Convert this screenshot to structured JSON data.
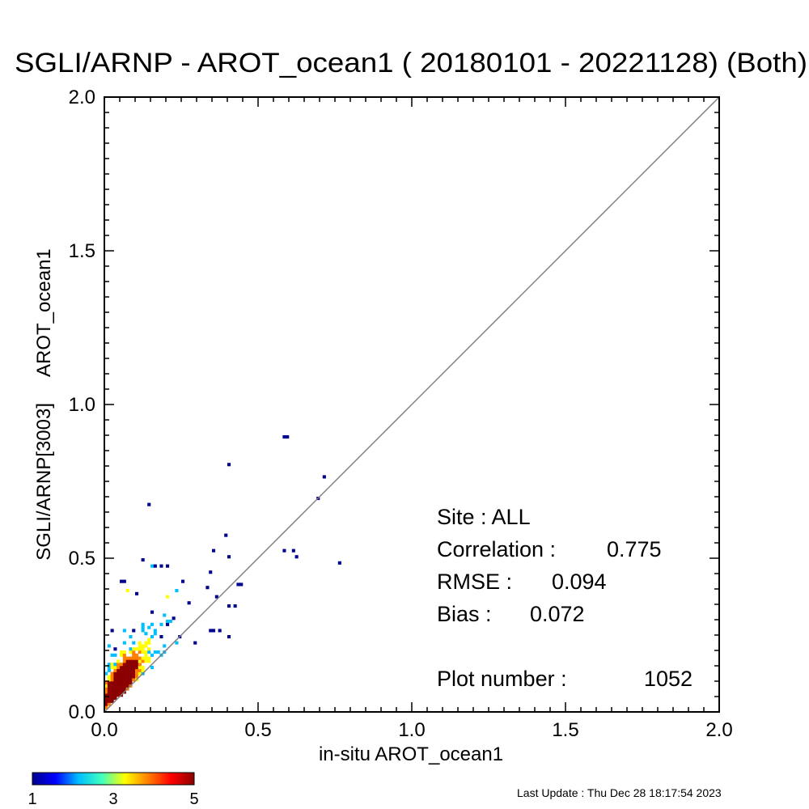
{
  "chart_data": {
    "type": "heatmap",
    "title": "SGLI/ARNP - AROT_ocean1 ( 20180101 - 20221128) (Both)",
    "xlabel": "in-situ AROT_ocean1",
    "ylabel": "SGLI/ARNP[3003]     AROT_ocean1",
    "xlim": [
      0.0,
      2.0
    ],
    "ylim": [
      0.0,
      2.0
    ],
    "x_ticks": [
      "0.0",
      "0.5",
      "1.0",
      "1.5",
      "2.0"
    ],
    "y_ticks": [
      "0.0",
      "0.5",
      "1.0",
      "1.5",
      "2.0"
    ],
    "one_to_one_line": true,
    "grid": false,
    "bin_size": 0.01,
    "cell_value_range": [
      1,
      5
    ],
    "stats": {
      "site": "Site : ALL",
      "correlation_label": "Correlation :",
      "correlation_value": "0.775",
      "rmse_label": "RMSE :",
      "rmse_value": "0.094",
      "bias_label": "Bias :",
      "bias_value": "0.072",
      "plot_number_label": "Plot number :",
      "plot_number_value": "1052"
    },
    "colorbar": {
      "labels": [
        "1",
        "3",
        "5"
      ],
      "colors": [
        "#00008f",
        "#0000ff",
        "#00bfff",
        "#40ffbf",
        "#ffff00",
        "#ff8000",
        "#ff0000",
        "#8b0000"
      ]
    },
    "outliers": [
      {
        "x": 0.58,
        "y": 0.89,
        "count": 1
      },
      {
        "x": 0.59,
        "y": 0.89,
        "count": 1
      },
      {
        "x": 0.4,
        "y": 0.8,
        "count": 1
      },
      {
        "x": 0.71,
        "y": 0.76,
        "count": 1
      },
      {
        "x": 0.69,
        "y": 0.69,
        "count": 1
      },
      {
        "x": 0.14,
        "y": 0.67,
        "count": 1
      },
      {
        "x": 0.39,
        "y": 0.57,
        "count": 1
      },
      {
        "x": 0.35,
        "y": 0.52,
        "count": 1
      },
      {
        "x": 0.58,
        "y": 0.52,
        "count": 1
      },
      {
        "x": 0.61,
        "y": 0.52,
        "count": 1
      },
      {
        "x": 0.62,
        "y": 0.5,
        "count": 1
      },
      {
        "x": 0.76,
        "y": 0.48,
        "count": 1
      },
      {
        "x": 0.4,
        "y": 0.5,
        "count": 1
      },
      {
        "x": 0.12,
        "y": 0.49,
        "count": 1
      },
      {
        "x": 0.15,
        "y": 0.47,
        "count": 2
      },
      {
        "x": 0.16,
        "y": 0.47,
        "count": 1
      },
      {
        "x": 0.18,
        "y": 0.47,
        "count": 1
      },
      {
        "x": 0.2,
        "y": 0.47,
        "count": 1
      },
      {
        "x": 0.34,
        "y": 0.45,
        "count": 1
      },
      {
        "x": 0.25,
        "y": 0.42,
        "count": 1
      },
      {
        "x": 0.43,
        "y": 0.41,
        "count": 1
      },
      {
        "x": 0.44,
        "y": 0.41,
        "count": 1
      },
      {
        "x": 0.05,
        "y": 0.42,
        "count": 1
      },
      {
        "x": 0.06,
        "y": 0.42,
        "count": 1
      },
      {
        "x": 0.33,
        "y": 0.4,
        "count": 1
      },
      {
        "x": 0.07,
        "y": 0.39,
        "count": 3
      },
      {
        "x": 0.23,
        "y": 0.39,
        "count": 2
      },
      {
        "x": 0.1,
        "y": 0.38,
        "count": 1
      },
      {
        "x": 0.2,
        "y": 0.37,
        "count": 3
      },
      {
        "x": 0.36,
        "y": 0.37,
        "count": 1
      },
      {
        "x": 0.27,
        "y": 0.35,
        "count": 1
      },
      {
        "x": 0.4,
        "y": 0.34,
        "count": 1
      },
      {
        "x": 0.42,
        "y": 0.34,
        "count": 1
      },
      {
        "x": 0.34,
        "y": 0.26,
        "count": 1
      },
      {
        "x": 0.35,
        "y": 0.26,
        "count": 1
      },
      {
        "x": 0.37,
        "y": 0.26,
        "count": 1
      },
      {
        "x": 0.4,
        "y": 0.24,
        "count": 1
      },
      {
        "x": 0.29,
        "y": 0.22,
        "count": 1
      }
    ]
  }
}
